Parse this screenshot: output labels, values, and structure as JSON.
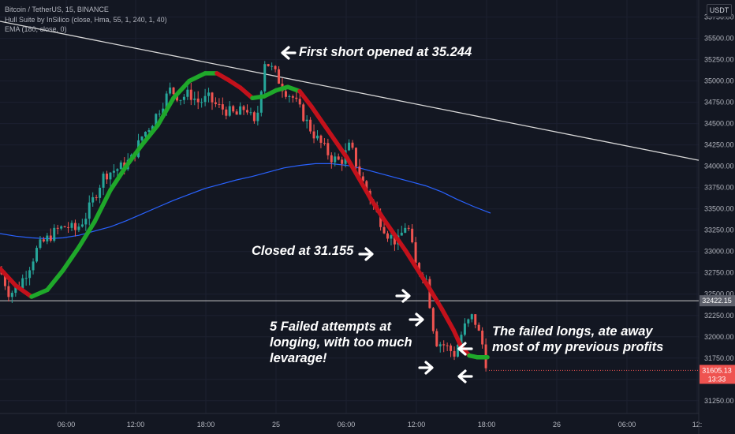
{
  "legend": {
    "symbol": "Bitcoin / TetherUS, 15, BINANCE",
    "hull": "Hull Suite by InSilico (close, Hma, 55, 1, 240, 1, 40)",
    "ema": "EMA (180, close, 0)"
  },
  "currency_label": "USDT",
  "colors": {
    "background": "#131722",
    "candle_up": "#26a69a",
    "candle_down": "#ef5350",
    "hull_up": "#1fa82a",
    "hull_down": "#c3111b",
    "ema": "#2962ff",
    "trendline": "#d8d8d8",
    "last_price_bg": "#ef5350"
  },
  "annotations": {
    "short": "First short opened at 35.244",
    "closed": "Closed at 31.155",
    "failed1": "5 Failed attempts at",
    "failed2": "longing, with too much",
    "failed3": "levarage!",
    "longs1": "The failed longs, ate away",
    "longs2": "most of my previous profits"
  },
  "chart_data": {
    "type": "candlestick",
    "y_ticks": [
      "35750.00",
      "35500.00",
      "35250.00",
      "35000.00",
      "34750.00",
      "34500.00",
      "34250.00",
      "34000.00",
      "33750.00",
      "33500.00",
      "33250.00",
      "33000.00",
      "32750.00",
      "32500.00",
      "32250.00",
      "32000.00",
      "31750.00",
      "31500.00",
      "31250.00"
    ],
    "x_ticks": [
      "06:00",
      "12:00",
      "18:00",
      "25",
      "06:00",
      "12:00",
      "18:00",
      "26",
      "06:00",
      "12:"
    ],
    "ylim": [
      31100,
      35950
    ],
    "horizontal_line": {
      "label": "32422.15",
      "value": 32422.15
    },
    "last_price": {
      "label": "31605.13",
      "value": 31605.13,
      "countdown": "13:33"
    },
    "close_path": [
      [
        0,
        32780
      ],
      [
        12,
        32500
      ],
      [
        24,
        32600
      ],
      [
        36,
        32800
      ],
      [
        48,
        33050
      ],
      [
        60,
        33150
      ],
      [
        72,
        33250
      ],
      [
        84,
        33300
      ],
      [
        96,
        33250
      ],
      [
        108,
        33400
      ],
      [
        120,
        33650
      ],
      [
        132,
        33900
      ],
      [
        144,
        33950
      ],
      [
        156,
        34000
      ],
      [
        168,
        34100
      ],
      [
        180,
        34350
      ],
      [
        192,
        34500
      ],
      [
        204,
        34700
      ],
      [
        216,
        34900
      ],
      [
        228,
        34800
      ],
      [
        240,
        34850
      ],
      [
        252,
        34750
      ],
      [
        264,
        34800
      ],
      [
        276,
        34700
      ],
      [
        288,
        34650
      ],
      [
        300,
        34600
      ],
      [
        312,
        34700
      ],
      [
        324,
        34450
      ],
      [
        336,
        35250
      ],
      [
        348,
        35100
      ],
      [
        360,
        34900
      ],
      [
        372,
        34800
      ],
      [
        384,
        34600
      ],
      [
        396,
        34400
      ],
      [
        408,
        34250
      ],
      [
        420,
        34100
      ],
      [
        432,
        34050
      ],
      [
        444,
        34250
      ],
      [
        456,
        33900
      ],
      [
        468,
        33650
      ],
      [
        480,
        33400
      ],
      [
        492,
        33200
      ],
      [
        504,
        33100
      ],
      [
        516,
        33350
      ],
      [
        528,
        32800
      ],
      [
        540,
        32700
      ],
      [
        552,
        31950
      ],
      [
        564,
        31900
      ],
      [
        576,
        31800
      ],
      [
        588,
        32100
      ],
      [
        600,
        32250
      ],
      [
        612,
        31900
      ],
      [
        618,
        31605
      ]
    ],
    "series": [
      {
        "name": "Hull Suite by InSilico (close, Hma, 55, 1, 240, 1, 40)",
        "type": "band",
        "points": [
          [
            0,
            32800
          ],
          [
            20,
            32600
          ],
          [
            40,
            32470
          ],
          [
            60,
            32550
          ],
          [
            80,
            32780
          ],
          [
            100,
            33050
          ],
          [
            120,
            33350
          ],
          [
            140,
            33720
          ],
          [
            160,
            34000
          ],
          [
            180,
            34250
          ],
          [
            200,
            34480
          ],
          [
            220,
            34800
          ],
          [
            240,
            35000
          ],
          [
            260,
            35090
          ],
          [
            275,
            35090
          ],
          [
            290,
            35010
          ],
          [
            305,
            34920
          ],
          [
            320,
            34800
          ],
          [
            335,
            34820
          ],
          [
            350,
            34890
          ],
          [
            365,
            34930
          ],
          [
            380,
            34880
          ],
          [
            395,
            34700
          ],
          [
            410,
            34500
          ],
          [
            425,
            34300
          ],
          [
            440,
            34100
          ],
          [
            455,
            33860
          ],
          [
            470,
            33620
          ],
          [
            485,
            33400
          ],
          [
            500,
            33200
          ],
          [
            515,
            33000
          ],
          [
            530,
            32780
          ],
          [
            545,
            32560
          ],
          [
            560,
            32330
          ],
          [
            575,
            32080
          ],
          [
            585,
            31880
          ],
          [
            595,
            31780
          ],
          [
            605,
            31760
          ],
          [
            618,
            31760
          ]
        ],
        "down_segments": [
          [
            0,
            40
          ],
          [
            275,
            325
          ],
          [
            375,
            595
          ]
        ]
      },
      {
        "name": "EMA (180, close, 0)",
        "type": "line",
        "points": [
          [
            0,
            33210
          ],
          [
            20,
            33180
          ],
          [
            40,
            33160
          ],
          [
            60,
            33150
          ],
          [
            80,
            33160
          ],
          [
            100,
            33190
          ],
          [
            120,
            33240
          ],
          [
            140,
            33290
          ],
          [
            160,
            33360
          ],
          [
            180,
            33440
          ],
          [
            200,
            33520
          ],
          [
            220,
            33600
          ],
          [
            240,
            33670
          ],
          [
            260,
            33740
          ],
          [
            280,
            33790
          ],
          [
            300,
            33840
          ],
          [
            320,
            33880
          ],
          [
            340,
            33930
          ],
          [
            360,
            33980
          ],
          [
            380,
            34010
          ],
          [
            400,
            34030
          ],
          [
            420,
            34030
          ],
          [
            440,
            34010
          ],
          [
            460,
            33970
          ],
          [
            480,
            33920
          ],
          [
            500,
            33870
          ],
          [
            520,
            33820
          ],
          [
            540,
            33770
          ],
          [
            560,
            33700
          ],
          [
            580,
            33610
          ],
          [
            600,
            33530
          ],
          [
            622,
            33450
          ]
        ]
      }
    ],
    "trendline": [
      [
        0,
        35700
      ],
      [
        886,
        34070
      ]
    ]
  }
}
